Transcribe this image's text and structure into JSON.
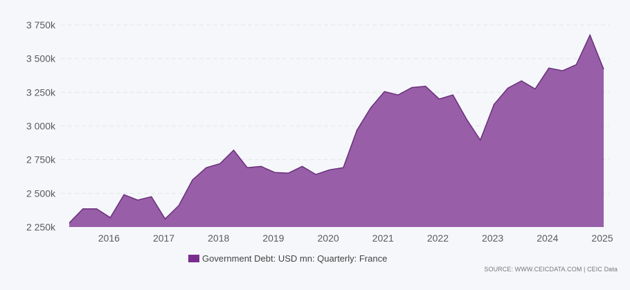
{
  "chart_data": {
    "type": "area",
    "title": "",
    "xlabel": "",
    "ylabel": "",
    "series": [
      {
        "name": "Government Debt: USD mn: Quarterly: France",
        "color": "#7e3f8f",
        "points": [
          [
            2015.25,
            2280
          ],
          [
            2015.5,
            2385
          ],
          [
            2015.75,
            2385
          ],
          [
            2016.0,
            2320
          ],
          [
            2016.25,
            2490
          ],
          [
            2016.5,
            2450
          ],
          [
            2016.75,
            2475
          ],
          [
            2017.0,
            2310
          ],
          [
            2017.25,
            2410
          ],
          [
            2017.5,
            2600
          ],
          [
            2017.75,
            2690
          ],
          [
            2018.0,
            2720
          ],
          [
            2018.25,
            2820
          ],
          [
            2018.5,
            2690
          ],
          [
            2018.75,
            2700
          ],
          [
            2019.0,
            2655
          ],
          [
            2019.25,
            2650
          ],
          [
            2019.5,
            2700
          ],
          [
            2019.75,
            2640
          ],
          [
            2020.0,
            2675
          ],
          [
            2020.25,
            2690
          ],
          [
            2020.5,
            2970
          ],
          [
            2020.75,
            3135
          ],
          [
            2021.0,
            3255
          ],
          [
            2021.25,
            3230
          ],
          [
            2021.5,
            3285
          ],
          [
            2021.75,
            3295
          ],
          [
            2022.0,
            3200
          ],
          [
            2022.25,
            3230
          ],
          [
            2022.5,
            3050
          ],
          [
            2022.75,
            2895
          ],
          [
            2023.0,
            3160
          ],
          [
            2023.25,
            3280
          ],
          [
            2023.5,
            3335
          ],
          [
            2023.75,
            3275
          ],
          [
            2024.0,
            3430
          ],
          [
            2024.25,
            3410
          ],
          [
            2024.5,
            3455
          ],
          [
            2024.75,
            3675
          ],
          [
            2025.0,
            3420
          ]
        ]
      }
    ],
    "ylim": [
      2250,
      3750
    ],
    "xlim": [
      2015.2,
      2025.0
    ],
    "y_ticks": [
      2250,
      2500,
      2750,
      3000,
      3250,
      3500,
      3750
    ],
    "y_tick_labels": [
      "2 250k",
      "2 500k",
      "2 750k",
      "3 000k",
      "3 250k",
      "3 500k",
      "3 750k"
    ],
    "x_ticks": [
      2016,
      2017,
      2018,
      2019,
      2020,
      2021,
      2022,
      2023,
      2024,
      2025
    ],
    "x_tick_labels": [
      "2016",
      "2017",
      "2018",
      "2019",
      "2020",
      "2021",
      "2022",
      "2023",
      "2024",
      "2025"
    ],
    "grid": true,
    "legend_position": "bottom-center"
  },
  "legend": {
    "label": "Government Debt: USD mn: Quarterly: France"
  },
  "source": "SOURCE: WWW.CEICDATA.COM | CEIC Data",
  "colors": {
    "fill": "#8b4a9c",
    "line": "#6a2f7a",
    "legend_swatch": "#7b2d8e",
    "grid": "#e2e5ea"
  }
}
